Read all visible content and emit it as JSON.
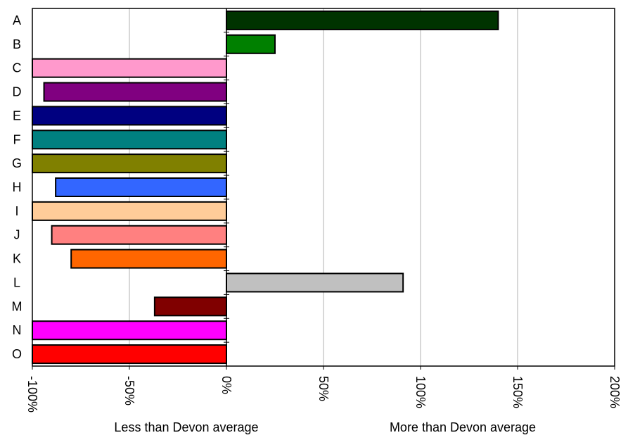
{
  "chart_data": {
    "type": "bar",
    "orientation": "horizontal",
    "categories": [
      "A",
      "B",
      "C",
      "D",
      "E",
      "F",
      "G",
      "H",
      "I",
      "J",
      "K",
      "L",
      "M",
      "N",
      "O"
    ],
    "values": [
      140,
      25,
      -100,
      -94,
      -100,
      -100,
      -100,
      -88,
      -100,
      -90,
      -80,
      91,
      -37,
      -100,
      -100
    ],
    "colors": [
      "#003300",
      "#008000",
      "#FF99CC",
      "#800080",
      "#000080",
      "#008080",
      "#808000",
      "#3366FF",
      "#FFCC99",
      "#FF8080",
      "#FF6600",
      "#C0C0C0",
      "#800000",
      "#FF00FF",
      "#FF0000"
    ],
    "xlim": [
      -100,
      200
    ],
    "xticks": [
      -100,
      -50,
      0,
      50,
      100,
      150,
      200
    ],
    "xtick_labels": [
      "-100%",
      "-50%",
      "0%",
      "50%",
      "100%",
      "150%",
      "200%"
    ],
    "grid": true,
    "legend": "none",
    "annotations": {
      "left": "Less than Devon average",
      "right": "More than Devon average"
    }
  }
}
